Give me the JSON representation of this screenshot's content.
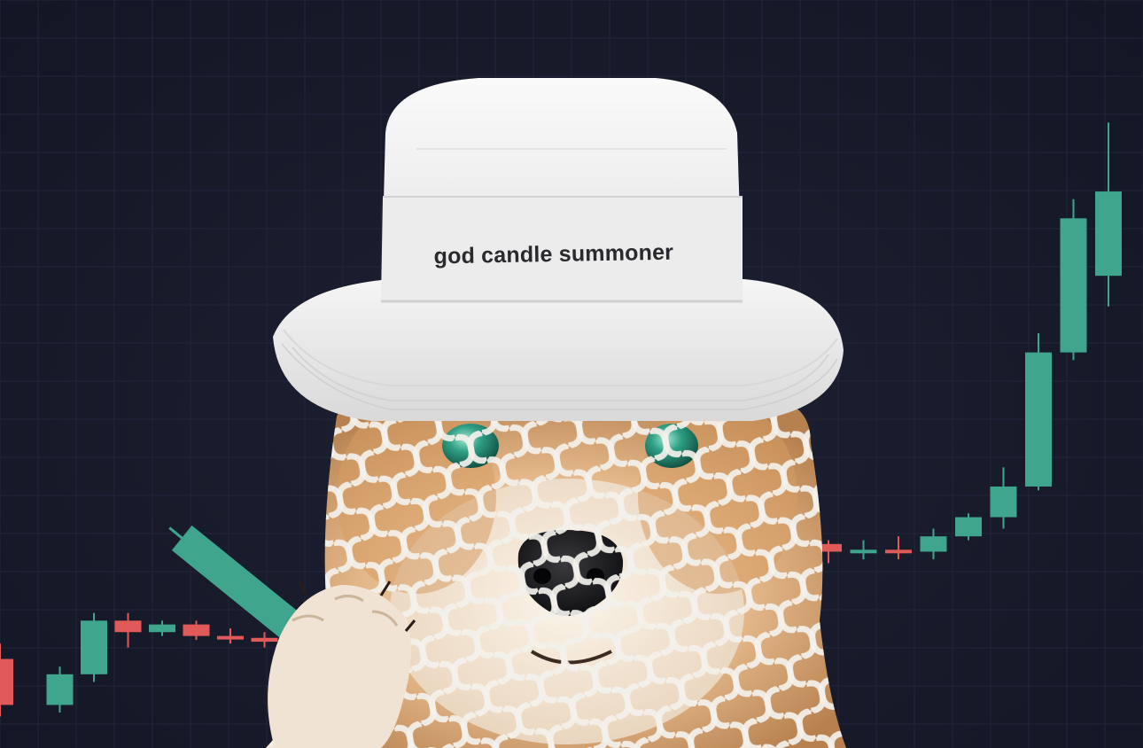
{
  "hat": {
    "text": "god candle summoner"
  },
  "colors": {
    "background": "#181b2a",
    "grid": "#22263a",
    "up_candle": "#3fa58c",
    "down_candle": "#e05a5a",
    "hat": "#f1f1f1",
    "eyes": "#2fa085"
  },
  "candles": [
    {
      "open": 30,
      "close": 18,
      "high": 34,
      "low": 15
    },
    {
      "open": 18,
      "close": 26,
      "high": 28,
      "low": 16
    },
    {
      "open": 26,
      "close": 40,
      "high": 42,
      "low": 24
    },
    {
      "open": 40,
      "close": 37,
      "high": 42,
      "low": 33
    },
    {
      "open": 37,
      "close": 39,
      "high": 40,
      "low": 36
    },
    {
      "open": 39,
      "close": 36,
      "high": 40,
      "low": 35
    },
    {
      "open": 36,
      "close": 35.5,
      "high": 38,
      "low": 34
    },
    {
      "open": 35.5,
      "close": 34.5,
      "high": 37,
      "low": 33
    },
    {
      "open": 60,
      "close": 58,
      "high": 61,
      "low": 55
    },
    {
      "open": 58,
      "close": 58.5,
      "high": 61,
      "low": 56
    },
    {
      "open": 58.5,
      "close": 58,
      "high": 62,
      "low": 56
    },
    {
      "open": 58,
      "close": 62,
      "high": 64,
      "low": 56
    },
    {
      "open": 62,
      "close": 67,
      "high": 68,
      "low": 61
    },
    {
      "open": 67,
      "close": 75,
      "high": 80,
      "low": 64
    },
    {
      "open": 75,
      "close": 110,
      "high": 115,
      "low": 74
    },
    {
      "open": 110,
      "close": 145,
      "high": 150,
      "low": 108
    },
    {
      "open": 130,
      "close": 152,
      "high": 170,
      "low": 122
    }
  ]
}
